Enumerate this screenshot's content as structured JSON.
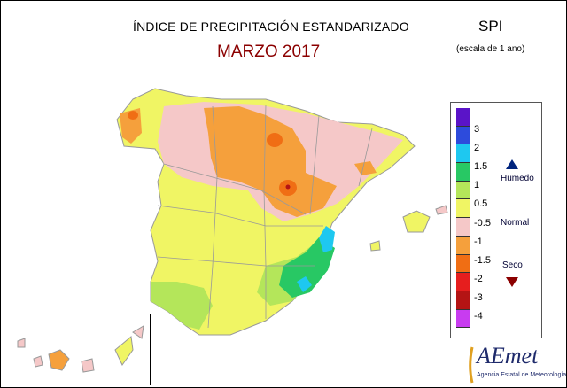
{
  "header": {
    "title": "ÍNDICE DE PRECIPITACIÓN ESTANDARIZADO",
    "subtitle": "MARZO 2017",
    "index": "SPI",
    "scale": "(escala de 1 ano)"
  },
  "legend": {
    "classes": [
      {
        "color": "#5a14c8"
      },
      {
        "color": "#2d4bdc"
      },
      {
        "color": "#1ec8f0"
      },
      {
        "color": "#28c864"
      },
      {
        "color": "#b4e65a"
      },
      {
        "color": "#f0f564"
      },
      {
        "color": "#f5c8c8"
      },
      {
        "color": "#f5a03c"
      },
      {
        "color": "#f06e14"
      },
      {
        "color": "#e61e1e"
      },
      {
        "color": "#b41414"
      },
      {
        "color": "#c83cf0"
      }
    ],
    "ticks": [
      "3",
      "2",
      "1.5",
      "1",
      "0.5",
      "-0.5",
      "-1",
      "-1.5",
      "-2",
      "-3",
      "-4"
    ],
    "humedo_label": "Humedo",
    "normal_label": "Normal",
    "seco_label": "Seco"
  },
  "logo": {
    "name": "AEmet",
    "tagline": "Agencia Estatal de Meteorología"
  }
}
